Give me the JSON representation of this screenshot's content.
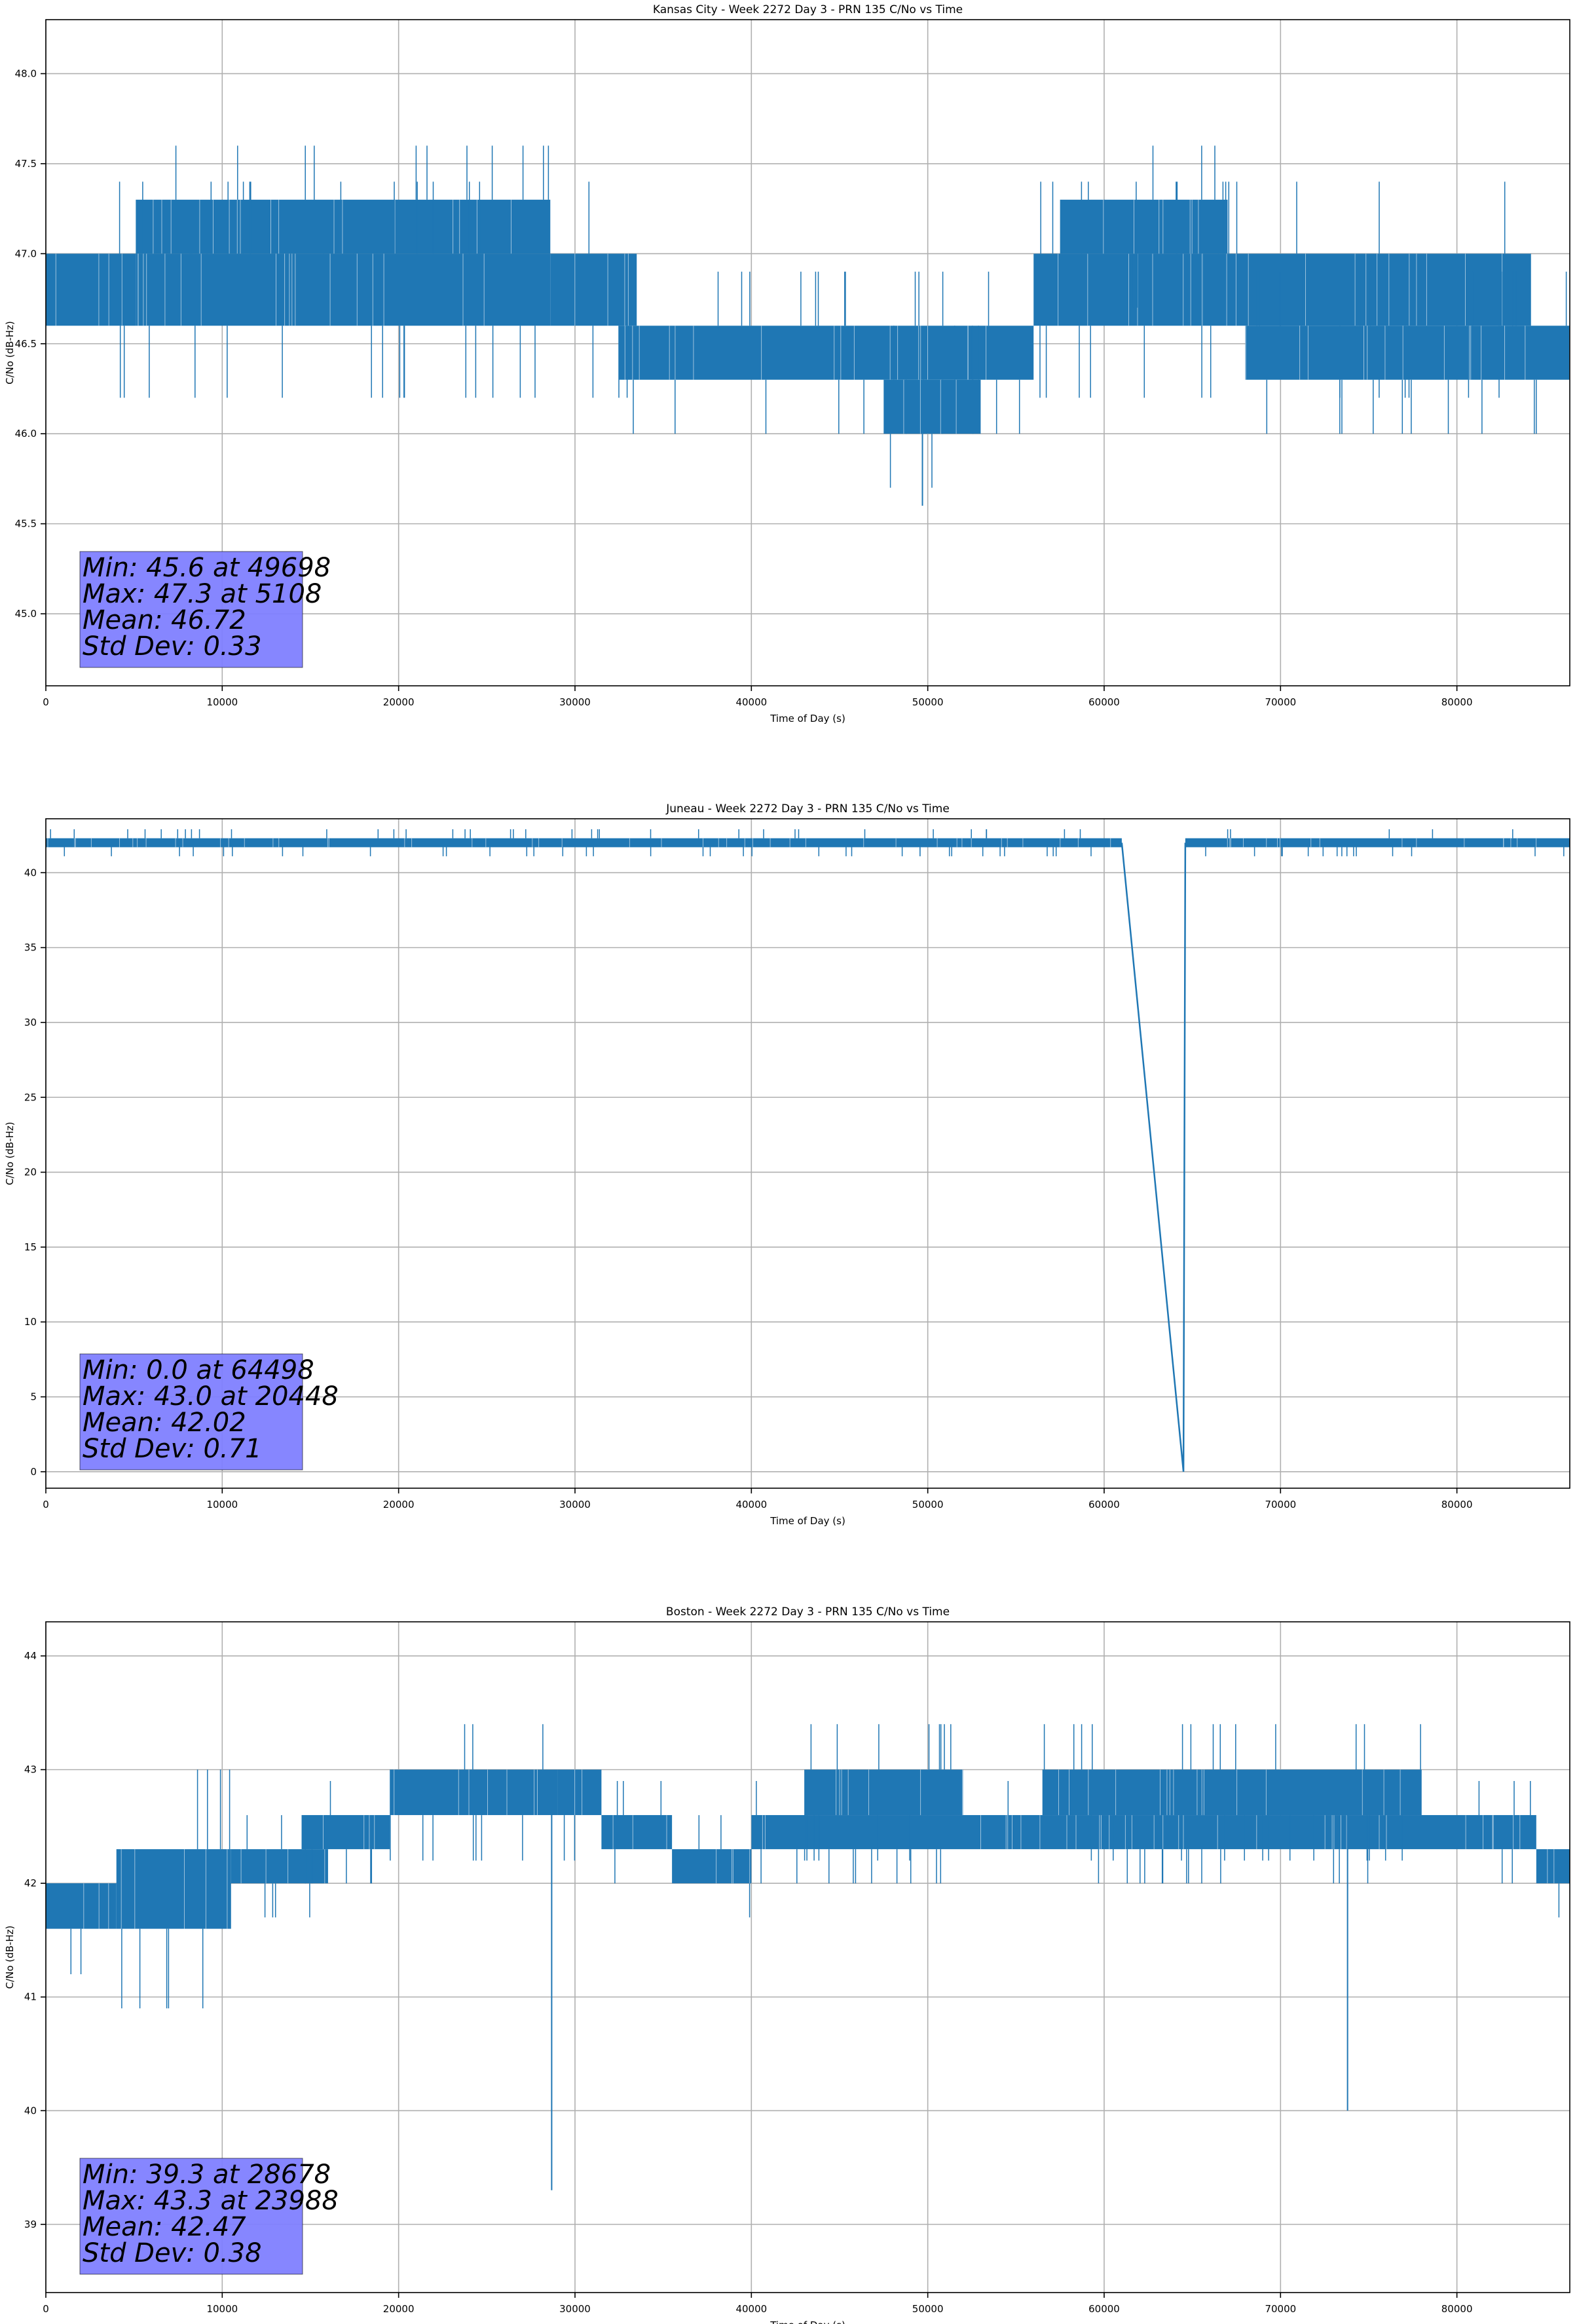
{
  "chart_data": [
    {
      "type": "line",
      "title": "Kansas City - Week 2272 Day 3 - PRN 135 C/No vs Time",
      "xlabel": "Time of Day (s)",
      "ylabel": "C/No (dB-Hz)",
      "xlim": [
        0,
        86400
      ],
      "ylim": [
        44.6,
        48.3
      ],
      "xticks": [
        0,
        10000,
        20000,
        30000,
        40000,
        50000,
        60000,
        70000,
        80000
      ],
      "xtick_labels": [
        "0",
        "10000",
        "20000",
        "30000",
        "40000",
        "50000",
        "60000",
        "70000",
        "80000"
      ],
      "yticks": [
        45.0,
        45.5,
        46.0,
        46.5,
        47.0,
        47.5,
        48.0
      ],
      "ytick_labels": [
        "45.0",
        "45.5",
        "46.0",
        "46.5",
        "47.0",
        "47.5",
        "48.0"
      ],
      "grid": true,
      "line_color": "#1f77b4",
      "series": [
        {
          "bands": [
            {
              "x": [
                0,
                5100
              ],
              "low": 46.6,
              "high": 47.0
            },
            {
              "x": [
                5100,
                28600
              ],
              "low": 47.0,
              "high": 47.3
            },
            {
              "x": [
                5100,
                28600
              ],
              "low": 46.6,
              "high": 47.0
            },
            {
              "x": [
                28600,
                33500
              ],
              "low": 46.6,
              "high": 47.0
            },
            {
              "x": [
                32500,
                56000
              ],
              "low": 46.3,
              "high": 46.6
            },
            {
              "x": [
                47500,
                53000
              ],
              "low": 46.0,
              "high": 46.3
            },
            {
              "x": [
                56000,
                65500
              ],
              "low": 46.6,
              "high": 47.0
            },
            {
              "x": [
                57500,
                67000
              ],
              "low": 47.0,
              "high": 47.3
            },
            {
              "x": [
                65500,
                84200
              ],
              "low": 46.6,
              "high": 47.0
            },
            {
              "x": [
                68000,
                86400
              ],
              "low": 46.3,
              "high": 46.6
            }
          ],
          "spikes": [
            {
              "x": 49698,
              "y": 45.6
            }
          ]
        }
      ],
      "annotation": {
        "lines": [
          "Min: 45.6 at 49698",
          "Max: 47.3 at 5108",
          "Mean: 46.72",
          "Std Dev: 0.33"
        ],
        "background": "#7f7fff"
      }
    },
    {
      "type": "line",
      "title": "Juneau - Week 2272 Day 3 - PRN 135 C/No vs Time",
      "xlabel": "Time of Day (s)",
      "ylabel": "C/No (dB-Hz)",
      "xlim": [
        0,
        86400
      ],
      "ylim": [
        -1.1,
        43.6
      ],
      "xticks": [
        0,
        10000,
        20000,
        30000,
        40000,
        50000,
        60000,
        70000,
        80000
      ],
      "xtick_labels": [
        "0",
        "10000",
        "20000",
        "30000",
        "40000",
        "50000",
        "60000",
        "70000",
        "80000"
      ],
      "yticks": [
        0,
        5,
        10,
        15,
        20,
        25,
        30,
        35,
        40
      ],
      "ytick_labels": [
        "0",
        "5",
        "10",
        "15",
        "20",
        "25",
        "30",
        "35",
        "40"
      ],
      "grid": true,
      "line_color": "#1f77b4",
      "series": [
        {
          "bands": [
            {
              "x": [
                0,
                61000
              ],
              "low": 41.7,
              "high": 42.3
            },
            {
              "x": [
                64600,
                86400
              ],
              "low": 41.7,
              "high": 42.3
            }
          ],
          "path": [
            [
              61000,
              42.0
            ],
            [
              64498,
              0.0
            ],
            [
              64600,
              42.0
            ]
          ],
          "spikes": []
        }
      ],
      "annotation": {
        "lines": [
          "Min: 0.0 at 64498",
          "Max: 43.0 at 20448",
          "Mean: 42.02",
          "Std Dev: 0.71"
        ],
        "background": "#7f7fff"
      }
    },
    {
      "type": "line",
      "title": "Boston - Week 2272 Day 3 - PRN 135 C/No vs Time",
      "xlabel": "Time of Day (s)",
      "ylabel": "C/No (dB-Hz)",
      "xlim": [
        0,
        86400
      ],
      "ylim": [
        38.4,
        44.3
      ],
      "xticks": [
        0,
        10000,
        20000,
        30000,
        40000,
        50000,
        60000,
        70000,
        80000
      ],
      "xtick_labels": [
        "0",
        "10000",
        "20000",
        "30000",
        "40000",
        "50000",
        "60000",
        "70000",
        "80000"
      ],
      "yticks": [
        39,
        40,
        41,
        42,
        43,
        44
      ],
      "ytick_labels": [
        "39",
        "40",
        "41",
        "42",
        "43",
        "44"
      ],
      "grid": true,
      "line_color": "#1f77b4",
      "series": [
        {
          "bands": [
            {
              "x": [
                0,
                4000
              ],
              "low": 41.6,
              "high": 42.0
            },
            {
              "x": [
                4000,
                10500
              ],
              "low": 41.6,
              "high": 42.3
            },
            {
              "x": [
                10500,
                16000
              ],
              "low": 42.0,
              "high": 42.3
            },
            {
              "x": [
                14500,
                19500
              ],
              "low": 42.3,
              "high": 42.6
            },
            {
              "x": [
                19500,
                29000
              ],
              "low": 42.6,
              "high": 43.0
            },
            {
              "x": [
                29000,
                31500
              ],
              "low": 42.6,
              "high": 43.0
            },
            {
              "x": [
                31500,
                35500
              ],
              "low": 42.3,
              "high": 42.6
            },
            {
              "x": [
                35500,
                40000
              ],
              "low": 42.0,
              "high": 42.3
            },
            {
              "x": [
                40000,
                84500
              ],
              "low": 42.3,
              "high": 42.6
            },
            {
              "x": [
                43000,
                52000
              ],
              "low": 42.6,
              "high": 43.0
            },
            {
              "x": [
                56500,
                78000
              ],
              "low": 42.6,
              "high": 43.0
            },
            {
              "x": [
                84500,
                86400
              ],
              "low": 42.0,
              "high": 42.3
            }
          ],
          "spikes": [
            {
              "x": 28678,
              "y": 39.3
            },
            {
              "x": 73800,
              "y": 40.0
            }
          ]
        }
      ],
      "annotation": {
        "lines": [
          "Min: 39.3 at 28678",
          "Max: 43.3 at 23988",
          "Mean: 42.47",
          "Std Dev: 0.38"
        ],
        "background": "#7f7fff"
      }
    }
  ]
}
